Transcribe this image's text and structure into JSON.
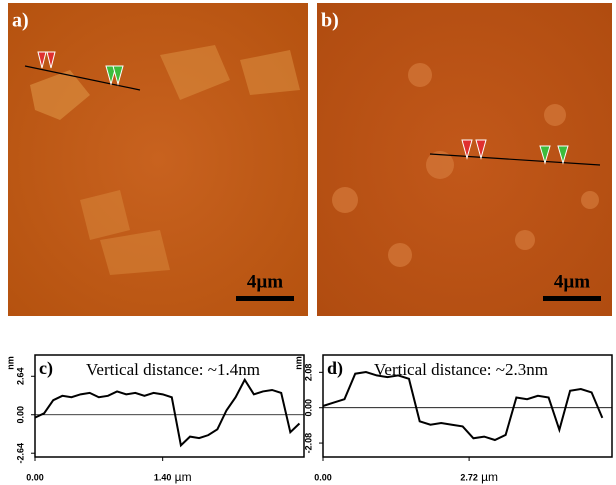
{
  "panels": [
    {
      "label": "a)",
      "scale_bar": "4µm"
    },
    {
      "label": "b)",
      "scale_bar": "4µm"
    }
  ],
  "chart_data": [
    {
      "type": "line",
      "label": "c)",
      "annotation": "Vertical distance: ~1.4nm",
      "ylabel": "nm",
      "xlabel": "µm",
      "x": [
        0,
        0.1,
        0.2,
        0.3,
        0.4,
        0.5,
        0.6,
        0.7,
        0.8,
        0.9,
        1.0,
        1.1,
        1.2,
        1.3,
        1.4,
        1.5,
        1.6,
        1.7,
        1.8,
        1.9,
        2.0,
        2.1,
        2.2,
        2.3,
        2.4,
        2.5,
        2.6,
        2.7,
        2.8,
        2.9
      ],
      "series": [
        {
          "color": "#000000",
          "values": [
            -0.2,
            0.1,
            1.0,
            1.3,
            1.2,
            1.4,
            1.5,
            1.2,
            1.3,
            1.6,
            1.4,
            1.5,
            1.3,
            1.5,
            1.4,
            1.2,
            -2.1,
            -1.5,
            -1.6,
            -1.4,
            -1.0,
            0.3,
            1.2,
            2.4,
            1.4,
            1.6,
            1.7,
            1.5,
            -1.2,
            -0.6
          ]
        }
      ],
      "xlim": [
        0,
        2.95
      ],
      "xticks": [
        {
          "value": 0,
          "label": "0.00"
        },
        {
          "value": 1.4,
          "label": "1.40"
        }
      ],
      "ylim": [
        -2.9,
        4.1
      ],
      "yticks": [
        {
          "value": 2.64,
          "label": "2.64"
        },
        {
          "value": 0,
          "label": "0.00"
        },
        {
          "value": -2.64,
          "label": "-2.64"
        }
      ]
    },
    {
      "type": "line",
      "label": "d)",
      "annotation": "Vertical distance: ~2.3nm",
      "ylabel": "nm",
      "xlabel": "µm",
      "x": [
        0,
        0.2,
        0.4,
        0.6,
        0.8,
        1.0,
        1.2,
        1.4,
        1.6,
        1.8,
        2.0,
        2.2,
        2.4,
        2.6,
        2.8,
        3.0,
        3.2,
        3.4,
        3.6,
        3.8,
        4.0,
        4.2,
        4.4,
        4.6,
        4.8,
        5.0,
        5.2
      ],
      "series": [
        {
          "color": "#000000",
          "values": [
            0.1,
            0.3,
            0.5,
            2.0,
            2.1,
            1.9,
            1.8,
            1.9,
            1.7,
            -0.8,
            -1.0,
            -0.9,
            -1.0,
            -1.1,
            -1.8,
            -1.7,
            -1.9,
            -1.6,
            0.6,
            0.5,
            0.7,
            0.6,
            -1.3,
            1.0,
            1.1,
            0.9,
            -0.6
          ]
        }
      ],
      "xlim": [
        0,
        5.38
      ],
      "xticks": [
        {
          "value": 0,
          "label": "0.00"
        },
        {
          "value": 2.72,
          "label": "2.72"
        }
      ],
      "ylim": [
        -2.9,
        3.1
      ],
      "yticks": [
        {
          "value": 2.08,
          "label": "2.08"
        },
        {
          "value": 0,
          "label": "0.00"
        },
        {
          "value": -2.08,
          "label": "-2.08"
        }
      ]
    }
  ]
}
